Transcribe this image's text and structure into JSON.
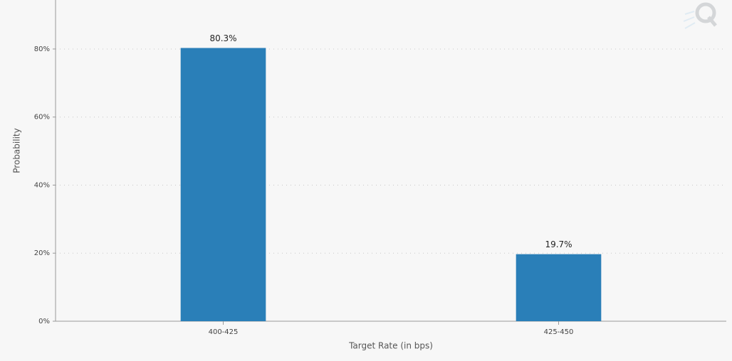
{
  "chart_data": {
    "type": "bar",
    "x_label": "Target Rate (in bps)",
    "y_label": "Probability",
    "categories": [
      "400-425",
      "425-450"
    ],
    "values": [
      80.3,
      19.7
    ],
    "value_labels": [
      "80.3%",
      "19.7%"
    ],
    "color": "#2a7fb8",
    "ylim": [
      0,
      94.4
    ],
    "yticks": [
      {
        "value": 0,
        "label": "0%"
      },
      {
        "value": 20,
        "label": "20%"
      },
      {
        "value": 40,
        "label": "40%"
      },
      {
        "value": 60,
        "label": "60%"
      },
      {
        "value": 80,
        "label": "80%"
      }
    ],
    "grid": true
  }
}
